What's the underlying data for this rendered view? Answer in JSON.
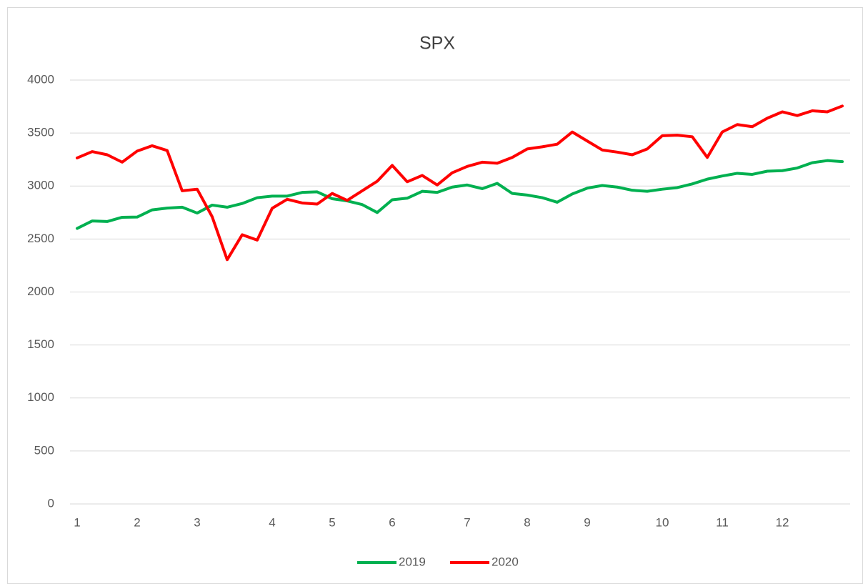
{
  "chart_data": {
    "type": "line",
    "title": "SPX",
    "categories": [
      "1",
      null,
      null,
      null,
      "2",
      null,
      null,
      null,
      "3",
      null,
      null,
      null,
      null,
      "4",
      null,
      null,
      null,
      "5",
      null,
      null,
      null,
      "6",
      null,
      null,
      null,
      null,
      "7",
      null,
      null,
      null,
      "8",
      null,
      null,
      null,
      "9",
      null,
      null,
      null,
      null,
      "10",
      null,
      null,
      null,
      "11",
      null,
      null,
      null,
      "12",
      null,
      null,
      null,
      null
    ],
    "series": [
      {
        "name": "2019",
        "color": "#00b050",
        "values": [
          2600,
          2670,
          2665,
          2705,
          2707,
          2775,
          2792,
          2800,
          2745,
          2820,
          2800,
          2835,
          2890,
          2905,
          2905,
          2940,
          2945,
          2880,
          2860,
          2825,
          2750,
          2870,
          2885,
          2950,
          2940,
          2990,
          3010,
          2975,
          3025,
          2930,
          2915,
          2890,
          2847,
          2925,
          2980,
          3005,
          2990,
          2960,
          2950,
          2970,
          2985,
          3020,
          3065,
          3095,
          3120,
          3110,
          3140,
          3145,
          3170,
          3220,
          3240,
          3230
        ]
      },
      {
        "name": "2020",
        "color": "#ff0000",
        "values": [
          3265,
          3325,
          3295,
          3225,
          3330,
          3380,
          3335,
          2955,
          2970,
          2710,
          2305,
          2540,
          2490,
          2790,
          2875,
          2840,
          2830,
          2930,
          2865,
          2955,
          3045,
          3195,
          3040,
          3100,
          3010,
          3125,
          3185,
          3225,
          3215,
          3270,
          3350,
          3370,
          3395,
          3510,
          3425,
          3340,
          3320,
          3295,
          3350,
          3475,
          3480,
          3465,
          3270,
          3510,
          3580,
          3560,
          3640,
          3700,
          3665,
          3710,
          3700,
          3755
        ]
      }
    ],
    "ylim": [
      0,
      4000
    ],
    "yticks": [
      0,
      500,
      1000,
      1500,
      2000,
      2500,
      3000,
      3500,
      4000
    ],
    "grid": true,
    "legend": "bottom"
  }
}
